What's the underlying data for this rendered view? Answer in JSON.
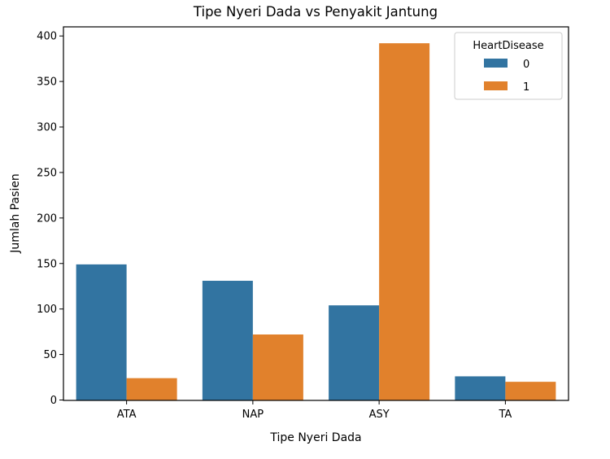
{
  "chart_data": {
    "type": "bar",
    "title": "Tipe Nyeri Dada vs Penyakit Jantung",
    "xlabel": "Tipe Nyeri Dada",
    "ylabel": "Jumlah Pasien",
    "categories": [
      "ATA",
      "NAP",
      "ASY",
      "TA"
    ],
    "series": [
      {
        "name": "0",
        "color": "#3274a1",
        "values": [
          149,
          131,
          104,
          26
        ]
      },
      {
        "name": "1",
        "color": "#e1812c",
        "values": [
          24,
          72,
          392,
          20
        ]
      }
    ],
    "ylim": [
      0,
      410
    ],
    "yticks": [
      "0",
      "50",
      "100",
      "150",
      "200",
      "250",
      "300",
      "350",
      "400"
    ],
    "grid": false,
    "legend": {
      "title": "HeartDisease",
      "position": "top-right"
    }
  }
}
